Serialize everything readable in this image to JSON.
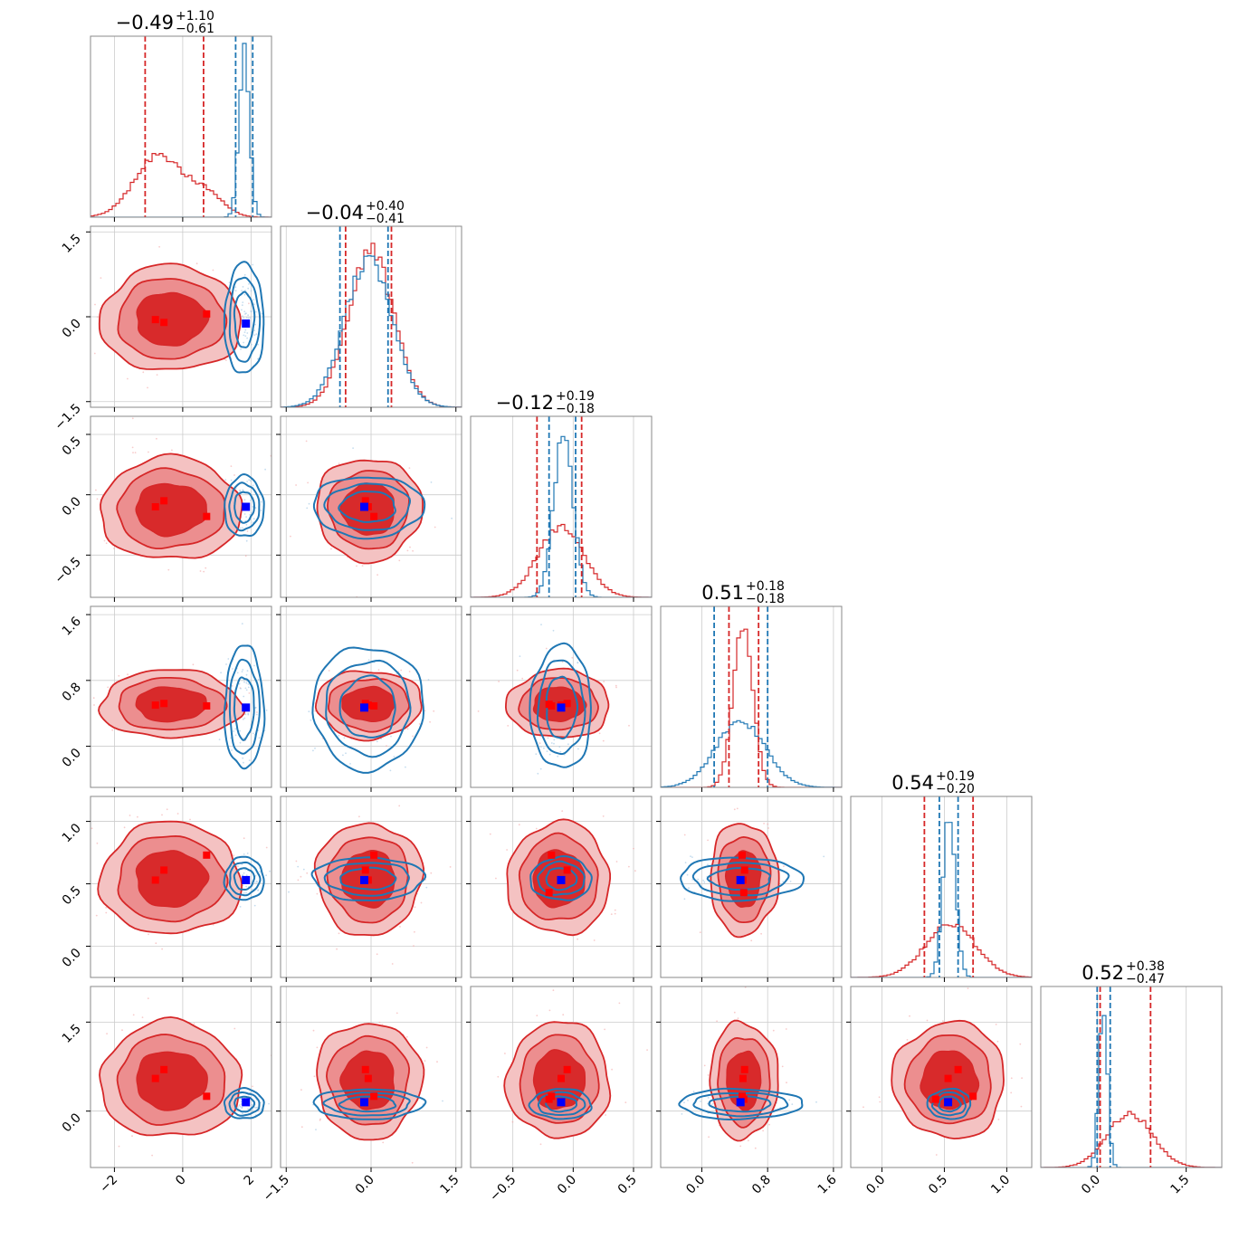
{
  "chart_data": {
    "type": "corner",
    "n_params": 6,
    "colors": {
      "red": "#d62728",
      "red_fill_outer": "#f4c2c2",
      "red_fill_mid": "#ec8e8f",
      "red_fill_inner": "#d82a2b",
      "blue": "#1f77b4",
      "marker_red": "#ff0000",
      "marker_blue": "#0000ff",
      "grid": "#cccccc",
      "frame": "#888888"
    },
    "params": [
      {
        "title": {
          "median": "−0.49",
          "plus": "+1.10",
          "minus": "−0.61"
        },
        "range": [
          -2.7,
          2.6
        ],
        "ticks": [
          -2,
          0,
          2
        ],
        "tick_labels": [
          "−2",
          "0",
          "2"
        ],
        "red": {
          "median": -0.49,
          "lo": -1.1,
          "hi": 0.61,
          "peak_x": -0.7,
          "width": 0.7
        },
        "blue": {
          "median": 1.8,
          "lo": 1.55,
          "hi": 2.05,
          "peak_x": 1.8,
          "width": 0.15
        },
        "red_hist_sec": {
          "x": 0.7,
          "w": 0.5,
          "amp": 0.35
        },
        "red_points": [
          -0.8,
          -0.55,
          0.7
        ],
        "blue_point": 1.85
      },
      {
        "title": {
          "median": "−0.04",
          "plus": "+0.40",
          "minus": "−0.41"
        },
        "range": [
          -1.6,
          1.6
        ],
        "ticks": [
          -1.5,
          0.0,
          1.5
        ],
        "tick_labels": [
          "−1.5",
          "0.0",
          "1.5"
        ],
        "red": {
          "median": -0.04,
          "lo": -0.45,
          "hi": 0.36,
          "peak_x": 0.0,
          "width": 0.4
        },
        "blue": {
          "median": -0.05,
          "lo": -0.55,
          "hi": 0.3,
          "peak_x": -0.05,
          "width": 0.42
        },
        "red_points": [
          -0.05,
          -0.1,
          0.05
        ],
        "blue_point": -0.12
      },
      {
        "title": {
          "median": "−0.12",
          "plus": "+0.19",
          "minus": "−0.18"
        },
        "range": [
          -0.85,
          0.65
        ],
        "ticks": [
          -0.5,
          0.0,
          0.5
        ],
        "tick_labels": [
          "−0.5",
          "0.0",
          "0.5"
        ],
        "red": {
          "median": -0.12,
          "lo": -0.3,
          "hi": 0.07,
          "peak_x": -0.1,
          "width": 0.19
        },
        "blue": {
          "median": -0.1,
          "lo": -0.2,
          "hi": 0.02,
          "peak_x": -0.08,
          "width": 0.08
        },
        "red_points": [
          -0.1,
          -0.05,
          -0.18,
          -0.2
        ],
        "blue_point": -0.1
      },
      {
        "title": {
          "median": "0.51",
          "plus": "+0.18",
          "minus": "−0.18"
        },
        "range": [
          -0.5,
          1.7
        ],
        "ticks": [
          0.0,
          0.8,
          1.6
        ],
        "tick_labels": [
          "0.0",
          "0.8",
          "1.6"
        ],
        "red": {
          "median": 0.51,
          "lo": 0.33,
          "hi": 0.69,
          "peak_x": 0.5,
          "width": 0.12
        },
        "blue": {
          "median": 0.47,
          "lo": 0.15,
          "hi": 0.8,
          "peak_x": 0.47,
          "width": 0.3
        },
        "red_points": [
          0.5,
          0.52,
          0.49,
          0.51
        ],
        "blue_point": 0.47
      },
      {
        "title": {
          "median": "0.54",
          "plus": "+0.19",
          "minus": "−0.20"
        },
        "range": [
          -0.25,
          1.2
        ],
        "ticks": [
          0.0,
          0.5,
          1.0
        ],
        "tick_labels": [
          "0.0",
          "0.5",
          "1.0"
        ],
        "red": {
          "median": 0.54,
          "lo": 0.34,
          "hi": 0.73,
          "peak_x": 0.55,
          "width": 0.2
        },
        "blue": {
          "median": 0.54,
          "lo": 0.46,
          "hi": 0.61,
          "peak_x": 0.54,
          "width": 0.05
        },
        "red_points": [
          0.53,
          0.61,
          0.73,
          0.43
        ],
        "blue_point": 0.53
      },
      {
        "title": {
          "median": "0.52",
          "plus": "+0.38",
          "minus": "−0.47"
        },
        "range": [
          -0.95,
          2.1
        ],
        "ticks": [
          0.0,
          1.5
        ],
        "tick_labels": [
          "0.0",
          "1.5"
        ],
        "red": {
          "median": 0.52,
          "lo": 0.05,
          "hi": 0.9,
          "peak_x": 0.55,
          "width": 0.38
        },
        "blue": {
          "median": 0.12,
          "lo": 0.0,
          "hi": 0.22,
          "peak_x": 0.1,
          "width": 0.07
        },
        "red_points": [
          0.55,
          0.7,
          0.25,
          0.2
        ],
        "blue_point": 0.15
      }
    ]
  }
}
